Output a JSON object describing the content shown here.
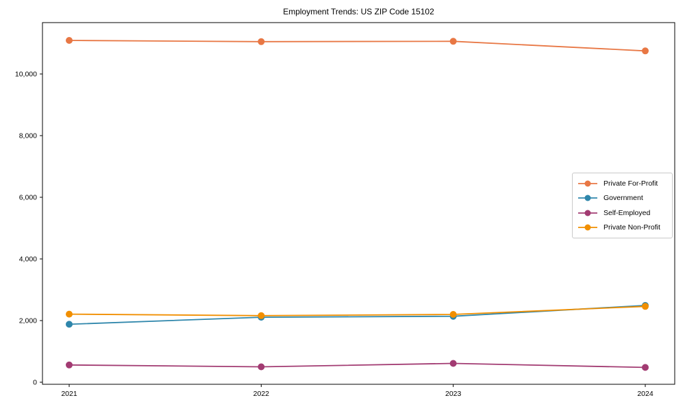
{
  "chart_data": {
    "type": "line",
    "title": "Employment Trends: US ZIP Code 15102",
    "xlabel": "",
    "ylabel": "",
    "x": [
      2021,
      2022,
      2023,
      2024
    ],
    "x_tick_labels": [
      "2021",
      "2022",
      "2023",
      "2024"
    ],
    "y_ticks": [
      0,
      2000,
      4000,
      6000,
      8000,
      10000
    ],
    "y_tick_labels": [
      "0",
      "2,000",
      "4,000",
      "6,000",
      "8,000",
      "10,000"
    ],
    "ylim": [
      0,
      11700
    ],
    "grid": false,
    "legend_position": "center-right",
    "series": [
      {
        "name": "Private For-Profit",
        "color": "#E87744",
        "values": [
          11090,
          11050,
          11060,
          10750
        ]
      },
      {
        "name": "Government",
        "color": "#2E86AB",
        "values": [
          1880,
          2110,
          2140,
          2490
        ]
      },
      {
        "name": "Self-Employed",
        "color": "#A23B72",
        "values": [
          560,
          500,
          610,
          480
        ]
      },
      {
        "name": "Private Non-Profit",
        "color": "#F18F01",
        "values": [
          2210,
          2160,
          2200,
          2460
        ]
      }
    ]
  }
}
